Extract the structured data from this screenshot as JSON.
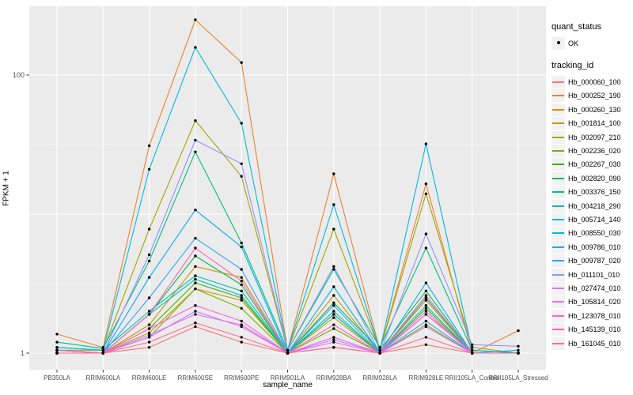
{
  "colors": {
    "panel_bg": "#EBEBEB",
    "grid": "#FFFFFF",
    "axis_text": "#4D4D4D",
    "tick_mark": "#333333",
    "point": "#000000",
    "legend_key_bg": "#F2F2F2"
  },
  "legend": {
    "quant_status_title": "quant_status",
    "quant_status_items": [
      {
        "label": "OK",
        "shape": "point"
      }
    ],
    "tracking_id_title": "tracking_id"
  },
  "chart_data": {
    "type": "line",
    "title": "",
    "xlabel": "sample_name",
    "ylabel": "FPKM + 1",
    "y_scale": "log10",
    "ylim": [
      0.76,
      316
    ],
    "y_major_gridlines": [
      1,
      10,
      100
    ],
    "y_minor_gridlines": [
      3.162,
      31.62
    ],
    "y_ticks": [
      1,
      100
    ],
    "y_tick_labels": [
      "1",
      "100"
    ],
    "grid": "on",
    "legend_position": "right",
    "point_marker": "black dot on every observation (quant_status OK)",
    "categories": [
      "PB350LA",
      "RRIM600LA",
      "RRIM600LE",
      "RRIM600SE",
      "RRIM600PE",
      "RRIM901LA",
      "RRIM928BA",
      "RRIM928LA",
      "RRIM928LE",
      "RRII105LA_Control",
      "RRII105LA_Stressed"
    ],
    "series": [
      {
        "name": "Hb_000060_100",
        "color": "#F8766D",
        "values": [
          1.0,
          1.0,
          1.1,
          1.55,
          1.2,
          1.0,
          1.1,
          1.0,
          1.15,
          1.0,
          1.0
        ]
      },
      {
        "name": "Hb_000252_190",
        "color": "#EA8331",
        "values": [
          1.37,
          1.1,
          31,
          250,
          123,
          1.05,
          19.5,
          1.05,
          16.5,
          1.0,
          1.45
        ]
      },
      {
        "name": "Hb_000260_130",
        "color": "#D89000",
        "values": [
          1.05,
          1.0,
          1.6,
          4.2,
          3.5,
          1.0,
          2.6,
          1.0,
          2.4,
          1.0,
          1.0
        ]
      },
      {
        "name": "Hb_001814_100",
        "color": "#C09B00",
        "values": [
          1.0,
          1.0,
          1.4,
          2.9,
          2.4,
          1.0,
          1.8,
          1.0,
          1.9,
          1.05,
          1.0
        ]
      },
      {
        "name": "Hb_002097_210",
        "color": "#A3A500",
        "values": [
          1.05,
          1.05,
          7.8,
          47,
          18.7,
          1.05,
          7.8,
          1.05,
          14,
          1.1,
          1.0
        ]
      },
      {
        "name": "Hb_002236_020",
        "color": "#7CAE00",
        "values": [
          1.0,
          1.0,
          1.3,
          2.9,
          2.1,
          1.0,
          1.5,
          1.0,
          1.6,
          1.0,
          1.0
        ]
      },
      {
        "name": "Hb_002267_030",
        "color": "#39B600",
        "values": [
          1.0,
          1.0,
          1.5,
          3.2,
          2.5,
          1.0,
          1.9,
          1.0,
          2.1,
          1.0,
          1.0
        ]
      },
      {
        "name": "Hb_002820_090",
        "color": "#00BB4E",
        "values": [
          1.05,
          1.0,
          1.9,
          5.0,
          3.1,
          1.0,
          2.3,
          1.05,
          2.8,
          1.0,
          1.0
        ]
      },
      {
        "name": "Hb_003376_150",
        "color": "#00BF7D",
        "values": [
          1.2,
          1.08,
          4.6,
          28,
          6.2,
          1.05,
          4.0,
          1.1,
          5.7,
          1.05,
          1.0
        ]
      },
      {
        "name": "Hb_004218_290",
        "color": "#00C1A3",
        "values": [
          1.1,
          1.05,
          2.0,
          3.6,
          2.8,
          1.0,
          2.0,
          1.0,
          2.5,
          1.0,
          1.0
        ]
      },
      {
        "name": "Hb_005714_140",
        "color": "#00BFC4",
        "values": [
          1.05,
          1.0,
          1.9,
          3.4,
          2.6,
          1.0,
          1.9,
          1.0,
          2.2,
          1.0,
          1.0
        ]
      },
      {
        "name": "Hb_008550_030",
        "color": "#00BAE0",
        "values": [
          1.1,
          1.05,
          21,
          158,
          45,
          1.05,
          11.7,
          1.05,
          32,
          1.05,
          1.0
        ]
      },
      {
        "name": "Hb_009786_010",
        "color": "#00B0F6",
        "values": [
          1.05,
          1.0,
          3.5,
          10.7,
          5.8,
          1.0,
          3.0,
          1.0,
          3.2,
          1.0,
          1.05
        ]
      },
      {
        "name": "Hb_009787_020",
        "color": "#35A2FF",
        "values": [
          1.0,
          1.0,
          2.5,
          6.7,
          4.0,
          1.0,
          2.2,
          1.0,
          1.7,
          1.0,
          1.0
        ]
      },
      {
        "name": "Hb_011101_010",
        "color": "#9590FF",
        "values": [
          1.05,
          1.0,
          5.1,
          34,
          23,
          1.05,
          4.2,
          1.0,
          7.2,
          1.15,
          1.12
        ]
      },
      {
        "name": "Hb_027474_010",
        "color": "#C77CFF",
        "values": [
          1.0,
          1.0,
          1.35,
          1.9,
          1.6,
          1.0,
          1.25,
          1.0,
          1.55,
          1.0,
          1.0
        ]
      },
      {
        "name": "Hb_105814_020",
        "color": "#E76BF3",
        "values": [
          1.0,
          1.0,
          1.3,
          2.0,
          1.55,
          1.0,
          1.2,
          1.0,
          1.9,
          1.0,
          1.0
        ]
      },
      {
        "name": "Hb_123078_010",
        "color": "#FA62DB",
        "values": [
          1.0,
          1.0,
          1.5,
          2.2,
          1.7,
          1.0,
          1.3,
          1.0,
          2.0,
          1.0,
          1.0
        ]
      },
      {
        "name": "Hb_145139_010",
        "color": "#FF62BC",
        "values": [
          1.05,
          1.0,
          1.9,
          5.7,
          3.3,
          1.0,
          1.6,
          1.0,
          2.6,
          1.0,
          1.0
        ]
      },
      {
        "name": "Hb_161045_010",
        "color": "#FF6A98",
        "values": [
          1.0,
          1.0,
          1.2,
          1.65,
          1.3,
          1.0,
          1.1,
          1.0,
          1.3,
          1.0,
          1.0
        ]
      }
    ]
  }
}
